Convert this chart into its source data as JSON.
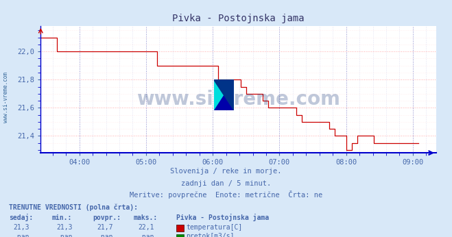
{
  "title": "Pivka - Postojnska jama",
  "bg_color": "#d8e8f8",
  "plot_bg_color": "#ffffff",
  "line_color": "#cc0000",
  "grid_color_x": "#aaaacc",
  "grid_color_y": "#ffaaaa",
  "axis_color": "#0000cc",
  "text_color": "#4466aa",
  "title_color": "#333366",
  "ytick_labels": [
    "21,4",
    "21,6",
    "21,8",
    "22,0"
  ],
  "ytick_values": [
    21.4,
    21.6,
    21.8,
    22.0
  ],
  "ylim": [
    21.28,
    22.18
  ],
  "xtick_labels": [
    "04:00",
    "05:00",
    "06:00",
    "07:00",
    "08:00",
    "09:00"
  ],
  "xtick_values": [
    4.0,
    5.0,
    6.0,
    7.0,
    8.0,
    9.0
  ],
  "xlim": [
    3.42,
    9.35
  ],
  "watermark": "www.si-vreme.com",
  "watermark_color": "#1a3a7a",
  "watermark_alpha": 0.28,
  "footer_line1": "Slovenija / reke in morje.",
  "footer_line2": "zadnji dan / 5 minut.",
  "footer_line3": "Meritve: povprečne  Enote: metrične  Črta: ne",
  "table_header": "TRENUTNE VREDNOSTI (polna črta):",
  "table_col1": "sedaj:",
  "table_col2": "min.:",
  "table_col3": "povpr.:",
  "table_col4": "maks.:",
  "table_col5": "Pivka - Postojnska jama",
  "table_row1": [
    "21,3",
    "21,3",
    "21,7",
    "22,1",
    "temperatura[C]"
  ],
  "table_row2": [
    "-nan",
    "-nan",
    "-nan",
    "-nan",
    "pretok[m3/s]"
  ],
  "temp_color": "#cc0000",
  "pretok_color": "#008800",
  "sidebar_text": "www.si-vreme.com",
  "sidebar_color": "#336699",
  "temp_data_x": [
    3.42,
    3.5,
    3.583,
    3.667,
    3.75,
    3.833,
    3.917,
    4.0,
    4.083,
    4.167,
    4.25,
    4.333,
    4.417,
    4.5,
    4.583,
    4.667,
    4.75,
    4.833,
    4.917,
    5.0,
    5.083,
    5.167,
    5.25,
    5.333,
    5.417,
    5.5,
    5.583,
    5.667,
    5.75,
    5.833,
    5.917,
    6.0,
    6.083,
    6.167,
    6.25,
    6.333,
    6.417,
    6.5,
    6.583,
    6.667,
    6.75,
    6.833,
    6.917,
    7.0,
    7.083,
    7.167,
    7.25,
    7.333,
    7.417,
    7.5,
    7.583,
    7.667,
    7.75,
    7.833,
    7.917,
    8.0,
    8.083,
    8.167,
    8.25,
    8.333,
    8.417,
    8.5,
    8.583,
    8.667,
    8.75,
    8.833,
    8.917,
    9.0,
    9.083
  ],
  "temp_data_y": [
    22.1,
    22.1,
    22.1,
    22.0,
    22.0,
    22.0,
    22.0,
    22.0,
    22.0,
    22.0,
    22.0,
    22.0,
    22.0,
    22.0,
    22.0,
    22.0,
    22.0,
    22.0,
    22.0,
    22.0,
    22.0,
    21.9,
    21.9,
    21.9,
    21.9,
    21.9,
    21.9,
    21.9,
    21.9,
    21.9,
    21.9,
    21.9,
    21.8,
    21.8,
    21.8,
    21.8,
    21.75,
    21.7,
    21.7,
    21.7,
    21.65,
    21.6,
    21.6,
    21.6,
    21.6,
    21.6,
    21.55,
    21.5,
    21.5,
    21.5,
    21.5,
    21.5,
    21.45,
    21.4,
    21.4,
    21.3,
    21.35,
    21.4,
    21.4,
    21.4,
    21.35,
    21.35,
    21.35,
    21.35,
    21.35,
    21.35,
    21.35,
    21.35,
    21.35
  ]
}
